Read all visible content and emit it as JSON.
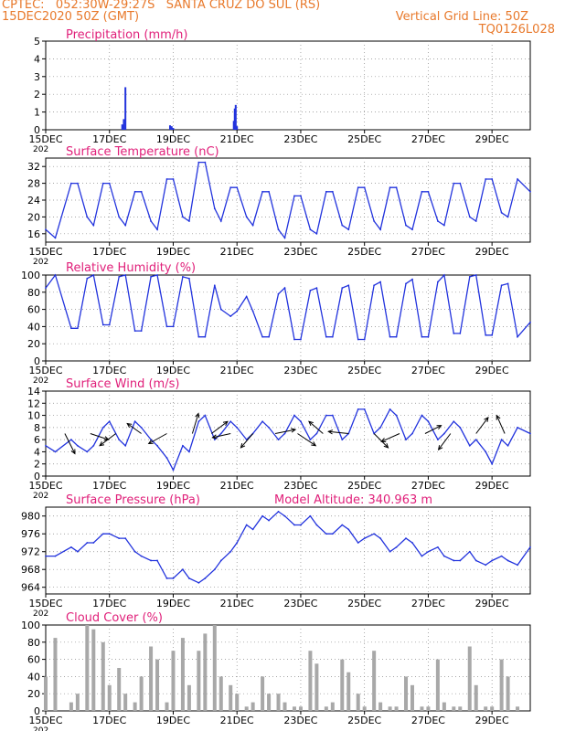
{
  "header": {
    "line1": "CPTEC:   052:30W-29:27S   SANTA CRUZ DO SUL (RS)",
    "line2": "15DEC2020 50Z (GMT)",
    "grid_note": "Vertical Grid Line: 50Z",
    "code": "TQ0126L028"
  },
  "colors": {
    "header": "#e8792b",
    "title": "#e0207a",
    "series": "#2233dd",
    "bars": "#a8a8a8",
    "frame": "#000000"
  },
  "x_axis": {
    "tick_labels": [
      "15DEC",
      "17DEC",
      "19DEC",
      "21DEC",
      "23DEC",
      "25DEC",
      "27DEC",
      "29DEC"
    ],
    "tick_days": [
      0,
      2,
      4,
      6,
      8,
      10,
      12,
      14
    ],
    "year_fragment": "202",
    "range_days": [
      0,
      15.2
    ]
  },
  "chart_data": [
    {
      "panel": "precip",
      "type": "bar",
      "title": "Precipitation (mm/h)",
      "ylim": [
        0,
        5
      ],
      "yticks": [
        0,
        1,
        2,
        3,
        4,
        5
      ],
      "x": [
        2.4,
        2.45,
        2.5,
        3.9,
        3.95,
        4.0,
        5.9,
        5.93,
        5.96,
        6.0
      ],
      "values": [
        0.3,
        0.6,
        2.4,
        0.25,
        0.2,
        0.1,
        0.5,
        1.2,
        1.4,
        0.2
      ]
    },
    {
      "panel": "temp",
      "type": "line",
      "title": "Surface Temperature (nC)",
      "ylim": [
        14,
        34
      ],
      "yticks": [
        16,
        20,
        24,
        28,
        32
      ],
      "x": [
        0.0,
        0.3,
        0.8,
        1.0,
        1.3,
        1.5,
        1.8,
        2.0,
        2.3,
        2.5,
        2.8,
        3.0,
        3.3,
        3.5,
        3.8,
        4.0,
        4.3,
        4.5,
        4.8,
        5.0,
        5.3,
        5.5,
        5.8,
        6.0,
        6.3,
        6.5,
        6.8,
        7.0,
        7.3,
        7.5,
        7.8,
        8.0,
        8.3,
        8.5,
        8.8,
        9.0,
        9.3,
        9.5,
        9.8,
        10.0,
        10.3,
        10.5,
        10.8,
        11.0,
        11.3,
        11.5,
        11.8,
        12.0,
        12.3,
        12.5,
        12.8,
        13.0,
        13.3,
        13.5,
        13.8,
        14.0,
        14.3,
        14.5,
        14.8,
        15.2
      ],
      "values": [
        17,
        15,
        28,
        28,
        20,
        18,
        28,
        28,
        20,
        18,
        26,
        26,
        19,
        17,
        29,
        29,
        20,
        19,
        33,
        33,
        22,
        19,
        27,
        27,
        20,
        18,
        26,
        26,
        17,
        15,
        25,
        25,
        17,
        16,
        26,
        26,
        18,
        17,
        27,
        27,
        19,
        17,
        27,
        27,
        18,
        17,
        26,
        26,
        19,
        18,
        28,
        28,
        20,
        19,
        29,
        29,
        21,
        20,
        29,
        26
      ]
    },
    {
      "panel": "rh",
      "type": "line",
      "title": "Relative Humidity (%)",
      "ylim": [
        0,
        100
      ],
      "yticks": [
        0,
        20,
        40,
        60,
        80,
        100
      ],
      "x": [
        0.0,
        0.3,
        0.8,
        1.0,
        1.3,
        1.5,
        1.8,
        2.0,
        2.3,
        2.5,
        2.8,
        3.0,
        3.3,
        3.5,
        3.8,
        4.0,
        4.3,
        4.5,
        4.8,
        5.0,
        5.3,
        5.5,
        5.8,
        6.0,
        6.3,
        6.5,
        6.8,
        7.0,
        7.3,
        7.5,
        7.8,
        8.0,
        8.3,
        8.5,
        8.8,
        9.0,
        9.3,
        9.5,
        9.8,
        10.0,
        10.3,
        10.5,
        10.8,
        11.0,
        11.3,
        11.5,
        11.8,
        12.0,
        12.3,
        12.5,
        12.8,
        13.0,
        13.3,
        13.5,
        13.8,
        14.0,
        14.3,
        14.5,
        14.8,
        15.2
      ],
      "values": [
        85,
        100,
        38,
        38,
        96,
        100,
        42,
        42,
        98,
        100,
        35,
        35,
        98,
        100,
        40,
        40,
        98,
        96,
        28,
        28,
        88,
        60,
        52,
        58,
        75,
        58,
        28,
        28,
        78,
        85,
        25,
        25,
        82,
        85,
        28,
        28,
        85,
        88,
        25,
        25,
        88,
        92,
        28,
        28,
        90,
        95,
        28,
        28,
        92,
        100,
        32,
        32,
        98,
        100,
        30,
        30,
        88,
        90,
        28,
        45
      ]
    },
    {
      "panel": "wind",
      "type": "line",
      "title": "Surface Wind (m/s)",
      "ylim": [
        0,
        14
      ],
      "yticks": [
        0,
        2,
        4,
        6,
        8,
        10,
        12,
        14
      ],
      "x": [
        0.0,
        0.3,
        0.8,
        1.0,
        1.3,
        1.5,
        1.8,
        2.0,
        2.3,
        2.5,
        2.8,
        3.0,
        3.3,
        3.5,
        3.8,
        4.0,
        4.3,
        4.5,
        4.8,
        5.0,
        5.3,
        5.5,
        5.8,
        6.0,
        6.3,
        6.5,
        6.8,
        7.0,
        7.3,
        7.5,
        7.8,
        8.0,
        8.3,
        8.5,
        8.8,
        9.0,
        9.3,
        9.5,
        9.8,
        10.0,
        10.3,
        10.5,
        10.8,
        11.0,
        11.3,
        11.5,
        11.8,
        12.0,
        12.3,
        12.5,
        12.8,
        13.0,
        13.3,
        13.5,
        13.8,
        14.0,
        14.3,
        14.5,
        14.8,
        15.2
      ],
      "values": [
        5,
        4,
        6,
        5,
        4,
        5,
        8,
        9,
        6,
        5,
        9,
        8,
        6,
        5,
        3,
        1,
        5,
        4,
        9,
        10,
        6,
        7,
        9,
        8,
        6,
        7,
        9,
        8,
        6,
        7,
        10,
        9,
        6,
        7,
        10,
        10,
        6,
        7,
        11,
        11,
        7,
        8,
        11,
        10,
        6,
        7,
        10,
        9,
        6,
        7,
        9,
        8,
        5,
        6,
        4,
        2,
        6,
        5,
        8,
        7
      ],
      "vectors": [
        {
          "x": 0.6,
          "u": 0.5,
          "v": -1.0
        },
        {
          "x": 1.4,
          "u": 0.9,
          "v": -0.3
        },
        {
          "x": 2.2,
          "u": -0.8,
          "v": -0.6
        },
        {
          "x": 3.0,
          "u": -0.7,
          "v": 0.5
        },
        {
          "x": 3.8,
          "u": -0.9,
          "v": -0.5
        },
        {
          "x": 4.6,
          "u": 0.3,
          "v": 1.0
        },
        {
          "x": 5.2,
          "u": 0.8,
          "v": 0.6
        },
        {
          "x": 5.8,
          "u": -0.9,
          "v": -0.2
        },
        {
          "x": 6.5,
          "u": -0.6,
          "v": -0.7
        },
        {
          "x": 7.2,
          "u": 1.0,
          "v": 0.2
        },
        {
          "x": 7.9,
          "u": 0.9,
          "v": -0.6
        },
        {
          "x": 8.7,
          "u": -0.7,
          "v": 0.6
        },
        {
          "x": 9.5,
          "u": -1.0,
          "v": 0.1
        },
        {
          "x": 10.3,
          "u": 0.7,
          "v": -0.7
        },
        {
          "x": 11.1,
          "u": -0.9,
          "v": -0.4
        },
        {
          "x": 11.9,
          "u": 0.8,
          "v": 0.4
        },
        {
          "x": 12.7,
          "u": -0.6,
          "v": -0.8
        },
        {
          "x": 13.5,
          "u": 0.6,
          "v": 0.8
        },
        {
          "x": 14.4,
          "u": -0.4,
          "v": 0.9
        }
      ]
    },
    {
      "panel": "press",
      "type": "line",
      "title": "Surface Pressure (hPa)",
      "altitude_label": "Model Altitude: 340.963 m",
      "ylim": [
        962.5,
        982
      ],
      "yticks": [
        964,
        968,
        972,
        976,
        980
      ],
      "x": [
        0.0,
        0.3,
        0.8,
        1.0,
        1.3,
        1.5,
        1.8,
        2.0,
        2.3,
        2.5,
        2.8,
        3.0,
        3.3,
        3.5,
        3.8,
        4.0,
        4.3,
        4.5,
        4.8,
        5.0,
        5.3,
        5.5,
        5.8,
        6.0,
        6.3,
        6.5,
        6.8,
        7.0,
        7.3,
        7.5,
        7.8,
        8.0,
        8.3,
        8.5,
        8.8,
        9.0,
        9.3,
        9.5,
        9.8,
        10.0,
        10.3,
        10.5,
        10.8,
        11.0,
        11.3,
        11.5,
        11.8,
        12.0,
        12.3,
        12.5,
        12.8,
        13.0,
        13.3,
        13.5,
        13.8,
        14.0,
        14.3,
        14.5,
        14.8,
        15.2
      ],
      "values": [
        971,
        971,
        973,
        972,
        974,
        974,
        976,
        976,
        975,
        975,
        972,
        971,
        970,
        970,
        966,
        966,
        968,
        966,
        965,
        966,
        968,
        970,
        972,
        974,
        978,
        977,
        980,
        979,
        981,
        980,
        978,
        978,
        980,
        978,
        976,
        976,
        978,
        977,
        974,
        975,
        976,
        975,
        972,
        973,
        975,
        974,
        971,
        972,
        973,
        971,
        970,
        970,
        972,
        970,
        969,
        970,
        971,
        970,
        969,
        973
      ]
    },
    {
      "panel": "cloud",
      "type": "bar",
      "title": "Cloud Cover (%)",
      "ylim": [
        0,
        100
      ],
      "yticks": [
        0,
        20,
        40,
        60,
        80,
        100
      ],
      "x": [
        0.0,
        0.3,
        0.8,
        1.0,
        1.3,
        1.5,
        1.8,
        2.0,
        2.3,
        2.5,
        2.8,
        3.0,
        3.3,
        3.5,
        3.8,
        4.0,
        4.3,
        4.5,
        4.8,
        5.0,
        5.3,
        5.5,
        5.8,
        6.0,
        6.3,
        6.5,
        6.8,
        7.0,
        7.3,
        7.5,
        7.8,
        8.0,
        8.3,
        8.5,
        8.8,
        9.0,
        9.3,
        9.5,
        9.8,
        10.0,
        10.3,
        10.5,
        10.8,
        11.0,
        11.3,
        11.5,
        11.8,
        12.0,
        12.3,
        12.5,
        12.8,
        13.0,
        13.3,
        13.5,
        13.8,
        14.0,
        14.3,
        14.5,
        14.8,
        15.2
      ],
      "values": [
        40,
        85,
        10,
        20,
        100,
        95,
        80,
        30,
        50,
        20,
        10,
        40,
        75,
        60,
        10,
        70,
        85,
        30,
        70,
        90,
        100,
        40,
        30,
        20,
        5,
        10,
        40,
        20,
        20,
        10,
        5,
        5,
        70,
        55,
        5,
        10,
        60,
        45,
        20,
        5,
        70,
        10,
        5,
        5,
        40,
        30,
        5,
        5,
        60,
        10,
        5,
        5,
        75,
        30,
        5,
        5,
        60,
        40,
        5,
        0
      ]
    }
  ]
}
